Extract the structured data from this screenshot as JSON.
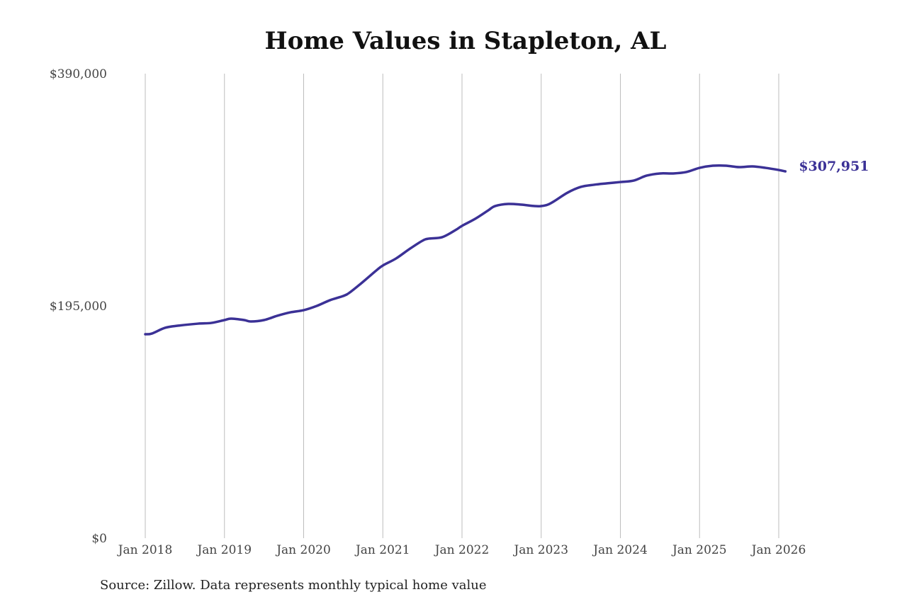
{
  "chart_data": {
    "type": "line",
    "title": "Home Values in Stapleton, AL",
    "source": "Source: Zillow. Data represents monthly typical home value",
    "xlabel": "",
    "ylabel": "",
    "ylim": [
      0,
      390000
    ],
    "y_ticks": [
      0,
      195000,
      390000
    ],
    "y_tick_labels": [
      "$0",
      "$195,000",
      "$390,000"
    ],
    "x_tick_labels": [
      "Jan 2018",
      "Jan 2019",
      "Jan 2020",
      "Jan 2021",
      "Jan 2022",
      "Jan 2023",
      "Jan 2024",
      "Jan 2025",
      "Jan 2026"
    ],
    "x_ticks": [
      "2018-01",
      "2019-01",
      "2020-01",
      "2021-01",
      "2022-01",
      "2023-01",
      "2024-01",
      "2025-01",
      "2026-01"
    ],
    "grid": "vertical at x ticks",
    "line_color": "#3b3196",
    "end_label": "$307,951",
    "series": [
      {
        "x": [
          "2018-01",
          "2018-02",
          "2018-04",
          "2018-06",
          "2018-09",
          "2018-11",
          "2019-01",
          "2019-02",
          "2019-04",
          "2019-05",
          "2019-07",
          "2019-09",
          "2019-11",
          "2020-01",
          "2020-03",
          "2020-05",
          "2020-07",
          "2020-08",
          "2020-10",
          "2020-12",
          "2021-01",
          "2021-03",
          "2021-05",
          "2021-07",
          "2021-08",
          "2021-10",
          "2021-12",
          "2022-01",
          "2022-03",
          "2022-05",
          "2022-06",
          "2022-08",
          "2022-10",
          "2022-12",
          "2023-01",
          "2023-02",
          "2023-03",
          "2023-05",
          "2023-07",
          "2023-09",
          "2023-11",
          "2024-01",
          "2024-03",
          "2024-05",
          "2024-07",
          "2024-09",
          "2024-11",
          "2025-01",
          "2025-03",
          "2025-05",
          "2025-07",
          "2025-09",
          "2025-11",
          "2026-01",
          "2026-02"
        ],
        "values": [
          171200,
          171800,
          176600,
          178400,
          180100,
          180700,
          183100,
          184300,
          183100,
          181900,
          183100,
          186700,
          189600,
          191400,
          195000,
          199800,
          203300,
          206300,
          215200,
          224700,
          228900,
          234800,
          242600,
          249700,
          251500,
          252700,
          258600,
          262200,
          268100,
          275300,
          278800,
          280600,
          280000,
          278800,
          278800,
          280000,
          283000,
          290100,
          294900,
          296700,
          297900,
          299000,
          300200,
          304400,
          306200,
          306200,
          307400,
          310900,
          312700,
          312700,
          311500,
          312100,
          310900,
          309100,
          307951
        ]
      }
    ]
  }
}
